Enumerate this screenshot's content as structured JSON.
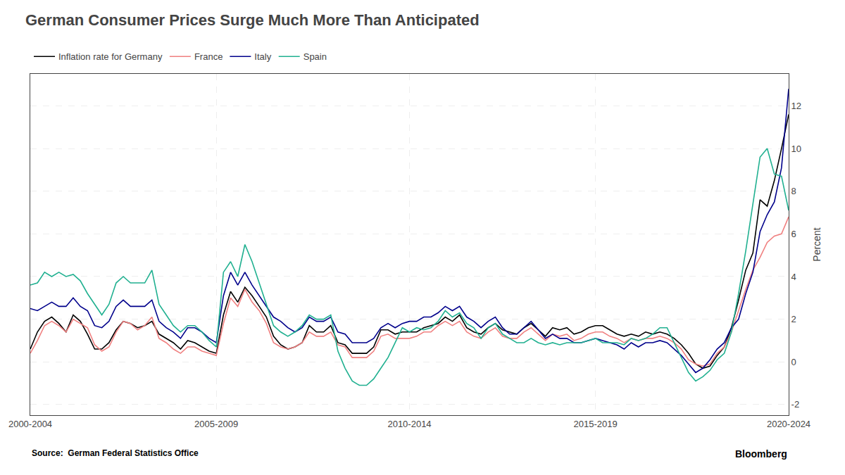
{
  "chart_data": {
    "type": "line",
    "title": "German Consumer Prices Surge Much More Than Anticipated",
    "ylabel": "Percent",
    "annotations": [
      "Source:  German Federal Statistics Office",
      "Bloomberg"
    ],
    "categories": [
      "2000-2004",
      null,
      null,
      null,
      null,
      null,
      null,
      null,
      null,
      null,
      null,
      null,
      null,
      null,
      null,
      null,
      null,
      null,
      null,
      null,
      null,
      null,
      null,
      null,
      null,
      null,
      "2005-2009",
      null,
      null,
      null,
      null,
      null,
      null,
      null,
      null,
      null,
      null,
      null,
      null,
      null,
      null,
      null,
      null,
      null,
      null,
      null,
      null,
      null,
      null,
      null,
      null,
      null,
      null,
      "2010-2014",
      null,
      null,
      null,
      null,
      null,
      null,
      null,
      null,
      null,
      null,
      null,
      null,
      null,
      null,
      null,
      null,
      null,
      null,
      null,
      null,
      null,
      null,
      null,
      null,
      null,
      "2015-2019",
      null,
      null,
      null,
      null,
      null,
      null,
      null,
      null,
      null,
      null,
      null,
      null,
      null,
      null,
      null,
      null,
      null,
      null,
      null,
      null,
      null,
      null,
      null,
      null,
      null,
      null,
      "2020-2024"
    ],
    "series": [
      {
        "name": "Inflation rate for Germany",
        "color": "#000000",
        "values": [
          0.6,
          1.4,
          1.9,
          2.1,
          1.8,
          1.4,
          2.2,
          1.9,
          1.3,
          0.6,
          0.6,
          0.9,
          1.5,
          1.9,
          1.8,
          1.6,
          1.7,
          1.9,
          1.3,
          1.1,
          0.9,
          0.6,
          1.0,
          0.9,
          0.7,
          0.5,
          0.4,
          2.2,
          3.3,
          2.8,
          3.5,
          3.1,
          2.6,
          2.1,
          1.2,
          0.8,
          0.6,
          0.7,
          0.9,
          1.7,
          1.4,
          1.4,
          1.7,
          0.9,
          0.8,
          0.4,
          0.4,
          0.4,
          0.7,
          1.5,
          1.5,
          1.3,
          1.4,
          1.4,
          1.4,
          1.6,
          1.7,
          1.8,
          2.1,
          1.9,
          2.2,
          1.6,
          1.4,
          1.3,
          1.6,
          1.8,
          1.5,
          1.4,
          1.3,
          1.6,
          1.8,
          1.5,
          1.2,
          1.6,
          1.5,
          1.6,
          1.3,
          1.4,
          1.6,
          1.7,
          1.7,
          1.5,
          1.3,
          1.2,
          1.3,
          1.2,
          1.4,
          1.3,
          1.4,
          1.3,
          1.1,
          0.8,
          0.4,
          -0.1,
          -0.3,
          -0.2,
          0.3,
          0.7,
          1.6,
          2.9,
          4.3,
          5.1,
          7.6,
          7.3,
          8.5,
          10.0,
          11.6
        ]
      },
      {
        "name": "France",
        "color": "#f08080",
        "values": [
          0.4,
          1.0,
          1.7,
          1.9,
          1.7,
          1.4,
          2.0,
          1.8,
          1.6,
          0.8,
          0.5,
          0.7,
          1.4,
          1.9,
          1.8,
          1.5,
          1.7,
          2.1,
          1.1,
          0.9,
          0.6,
          0.4,
          0.7,
          0.7,
          0.5,
          0.4,
          0.3,
          1.8,
          3.0,
          2.6,
          3.4,
          2.8,
          2.4,
          1.8,
          0.9,
          0.7,
          0.6,
          0.7,
          0.9,
          1.4,
          1.2,
          1.2,
          1.4,
          0.8,
          0.7,
          0.2,
          0.2,
          0.2,
          0.5,
          1.2,
          1.3,
          1.1,
          1.1,
          1.1,
          1.2,
          1.4,
          1.4,
          1.7,
          1.9,
          1.7,
          1.9,
          1.4,
          1.2,
          1.1,
          1.4,
          1.6,
          1.2,
          1.1,
          1.1,
          1.4,
          1.6,
          1.3,
          1.0,
          1.3,
          1.2,
          1.3,
          1.0,
          1.1,
          1.3,
          1.4,
          1.4,
          1.2,
          1.1,
          0.9,
          1.1,
          1.0,
          1.1,
          1.1,
          1.2,
          1.1,
          0.9,
          0.6,
          0.1,
          -0.1,
          -0.2,
          -0.1,
          0.4,
          0.7,
          1.4,
          2.4,
          3.4,
          4.3,
          4.9,
          5.6,
          5.9,
          6.0,
          6.8
        ]
      },
      {
        "name": "Italy",
        "color": "#00008b",
        "values": [
          2.5,
          2.4,
          2.6,
          2.8,
          2.6,
          2.6,
          3.0,
          2.6,
          2.4,
          1.7,
          1.6,
          1.9,
          2.6,
          2.9,
          2.6,
          2.6,
          2.6,
          2.9,
          1.9,
          1.6,
          1.4,
          1.1,
          1.6,
          1.6,
          1.4,
          1.1,
          0.9,
          3.1,
          4.2,
          3.6,
          4.2,
          3.6,
          3.1,
          2.6,
          2.1,
          1.9,
          1.6,
          1.4,
          1.6,
          2.1,
          1.9,
          1.9,
          2.1,
          1.4,
          1.3,
          0.9,
          0.9,
          0.9,
          1.1,
          1.6,
          1.8,
          1.6,
          1.8,
          1.9,
          1.9,
          2.1,
          2.1,
          2.3,
          2.6,
          2.4,
          2.6,
          2.1,
          1.9,
          1.6,
          1.9,
          2.1,
          1.6,
          1.3,
          1.3,
          1.6,
          1.9,
          1.5,
          1.1,
          1.3,
          1.1,
          1.1,
          0.9,
          0.9,
          1.0,
          1.1,
          1.0,
          0.9,
          0.8,
          0.6,
          0.9,
          0.7,
          0.9,
          0.9,
          1.0,
          0.9,
          0.6,
          0.3,
          -0.1,
          -0.5,
          -0.3,
          0.1,
          0.6,
          0.9,
          1.6,
          2.0,
          3.2,
          4.2,
          6.1,
          6.9,
          7.5,
          9.1,
          12.8
        ]
      },
      {
        "name": "Spain",
        "color": "#20b090",
        "values": [
          3.6,
          3.7,
          4.2,
          4.0,
          4.2,
          4.0,
          4.1,
          3.8,
          3.2,
          2.7,
          2.2,
          2.7,
          3.7,
          4.0,
          3.7,
          3.7,
          3.7,
          4.3,
          2.7,
          2.2,
          1.7,
          1.4,
          1.7,
          1.7,
          1.4,
          1.0,
          0.7,
          4.2,
          4.7,
          4.0,
          5.5,
          4.7,
          3.7,
          2.7,
          1.7,
          1.4,
          1.2,
          1.4,
          1.7,
          2.2,
          2.0,
          2.0,
          2.2,
          0.5,
          -0.3,
          -0.9,
          -1.1,
          -1.1,
          -0.8,
          -0.3,
          0.2,
          0.9,
          1.6,
          1.4,
          1.6,
          1.5,
          1.6,
          1.9,
          2.4,
          2.1,
          2.3,
          1.8,
          1.6,
          1.1,
          1.6,
          1.8,
          1.3,
          1.1,
          0.9,
          0.9,
          1.1,
          0.9,
          0.8,
          0.9,
          0.8,
          0.9,
          0.9,
          0.9,
          1.0,
          1.1,
          0.9,
          0.9,
          0.9,
          0.8,
          1.1,
          1.0,
          1.1,
          1.3,
          1.6,
          1.6,
          0.9,
          0.2,
          -0.5,
          -0.9,
          -0.7,
          -0.4,
          0.1,
          0.4,
          1.4,
          3.2,
          5.2,
          7.4,
          9.6,
          10.0,
          8.8,
          8.7,
          7.1
        ]
      }
    ],
    "ylim": [
      -2.5,
      13.5
    ],
    "yticks": [
      -2,
      0,
      2,
      4,
      6,
      8,
      10,
      12
    ],
    "grid": true,
    "legend": "top left"
  }
}
